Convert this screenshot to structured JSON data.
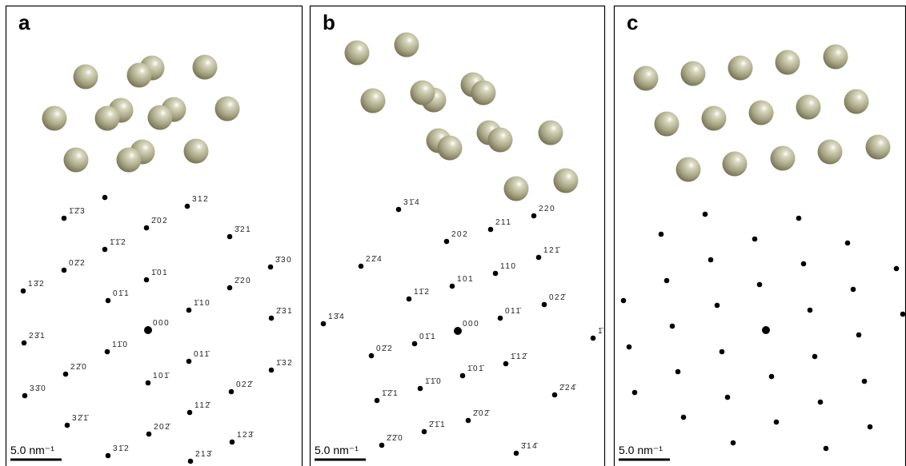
{
  "panels": [
    {
      "label": "a",
      "scale_bar": "5.0 nm⁻¹",
      "spots": [
        "312",
        "1̄2̄3",
        "2̄02",
        "3̄21",
        "1̄1̄2",
        "02̄2",
        "3̄30",
        "13̄2",
        "1̄01",
        "01̄1",
        "2̄20",
        "000",
        "1̄10",
        "2̄31",
        "23̄1",
        "11̄0",
        "011̄",
        "1̄32",
        "22̄0",
        "101̄",
        "022̄",
        "33̄0",
        "112̄",
        "32̄1̄",
        "202̄",
        "123̄",
        "31̄2",
        "213̄"
      ]
    },
    {
      "label": "b",
      "scale_bar": "5.0 nm⁻¹",
      "spots": [
        "31̄4",
        "220",
        "211",
        "202",
        "121̄",
        "22̄4",
        "110",
        "101",
        "11̄2",
        "022̄",
        "13̄4",
        "011̄",
        "000",
        "01̄1",
        "1̄",
        "1̄12̄",
        "02̄2",
        "1̄01̄",
        "1̄1̄0",
        "2̄24̄",
        "1̄2̄1",
        "2̄02̄",
        "2̄1̄1",
        "2̄2̄0",
        "3̄14̄"
      ]
    },
    {
      "label": "c",
      "scale_bar": "5.0 nm⁻¹"
    }
  ]
}
